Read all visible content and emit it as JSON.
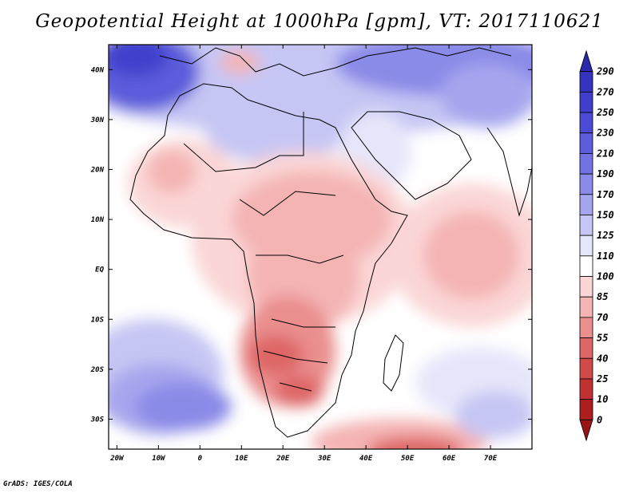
{
  "title": "Geopotential Height at 1000hPa [gpm], VT: 2017110621",
  "credit": "GrADS: IGES/COLA",
  "lat_labels": [
    "40N",
    "30N",
    "20N",
    "10N",
    "EQ",
    "10S",
    "20S",
    "30S"
  ],
  "lat_values": [
    40,
    30,
    20,
    10,
    0,
    -10,
    -20,
    -30
  ],
  "lon_labels": [
    "20W",
    "10W",
    "0",
    "10E",
    "20E",
    "30E",
    "40E",
    "50E",
    "60E",
    "70E"
  ],
  "lon_values": [
    -20,
    -10,
    0,
    10,
    20,
    30,
    40,
    50,
    60,
    70
  ],
  "domain": {
    "lon_min": -22,
    "lon_max": 80,
    "lat_min": -36,
    "lat_max": 45
  },
  "colorbar": {
    "labels": [
      "290",
      "270",
      "250",
      "230",
      "210",
      "190",
      "170",
      "150",
      "125",
      "110",
      "100",
      "85",
      "70",
      "55",
      "40",
      "25",
      "10",
      "0"
    ],
    "colors": [
      "#2a2aa8",
      "#3434bf",
      "#3f3fcc",
      "#4b4bd6",
      "#5c5cdc",
      "#7272e2",
      "#8a8ae8",
      "#a6a6ee",
      "#c6c6f4",
      "#e6e6fa",
      "#ffffff",
      "#fbd6d6",
      "#f4b4b4",
      "#ea8e8e",
      "#de6666",
      "#d04a4a",
      "#c03232",
      "#ad1f1f",
      "#981616"
    ]
  }
}
